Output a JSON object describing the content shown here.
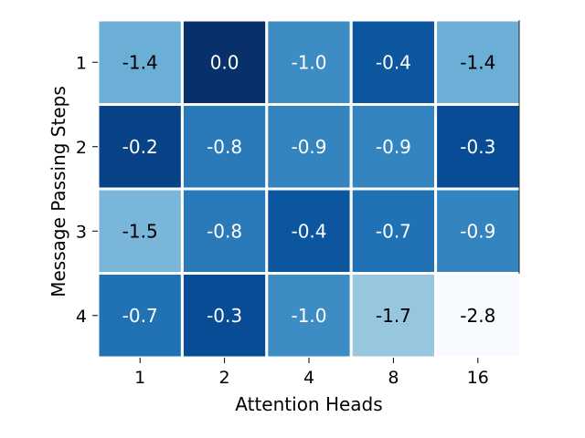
{
  "chart_data": {
    "type": "heatmap",
    "xlabel": "Attention Heads",
    "ylabel": "Message Passing Steps",
    "x_categories": [
      "1",
      "2",
      "4",
      "8",
      "16"
    ],
    "y_categories": [
      "1",
      "2",
      "3",
      "4"
    ],
    "values": [
      [
        -1.4,
        0.0,
        -1.0,
        -0.4,
        -1.4
      ],
      [
        -0.2,
        -0.8,
        -0.9,
        -0.9,
        -0.3
      ],
      [
        -1.5,
        -0.8,
        -0.4,
        -0.7,
        -0.9
      ],
      [
        -0.7,
        -0.3,
        -1.0,
        -1.7,
        -2.8
      ]
    ],
    "value_labels": [
      [
        "-1.4",
        "0.0",
        "-1.0",
        "-0.4",
        "-1.4"
      ],
      [
        "-0.2",
        "-0.8",
        "-0.9",
        "-0.9",
        "-0.3"
      ],
      [
        "-1.5",
        "-0.8",
        "-0.4",
        "-0.7",
        "-0.9"
      ],
      [
        "-0.7",
        "-0.3",
        "-1.0",
        "-1.7",
        "-2.8"
      ]
    ],
    "colormap": "Blues",
    "color_scale": {
      "min": -2.8,
      "max": 0.0
    },
    "cell_border_color": "#ffffff",
    "label_color_dark": "#000000",
    "label_color_light": "#ffffff",
    "grid": false,
    "legend": "none"
  }
}
